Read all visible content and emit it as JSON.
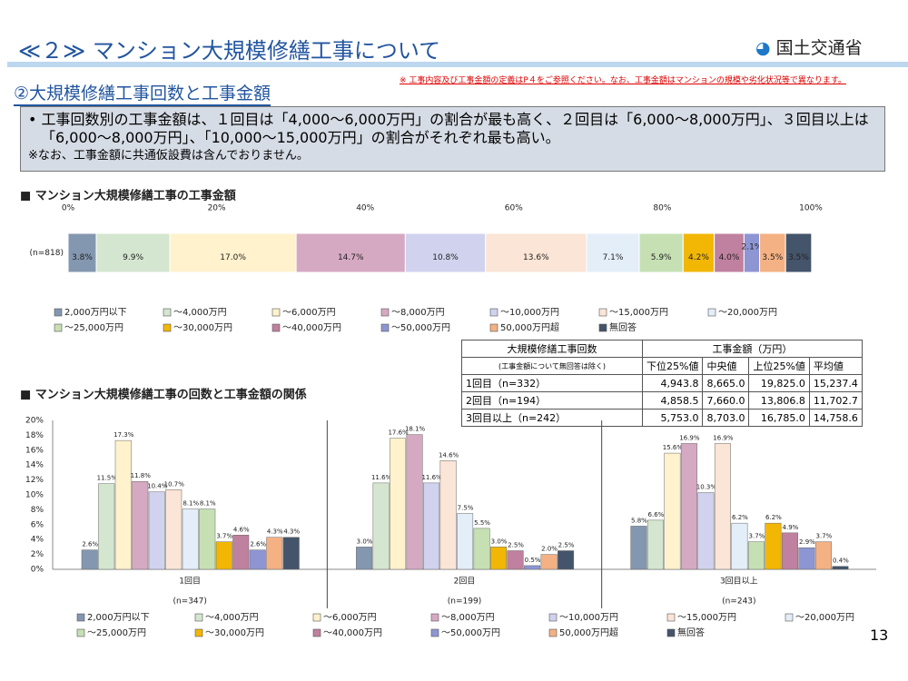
{
  "header": {
    "title": "≪２≫ マンション大規模修繕工事について",
    "logo": "国土交通省",
    "subtitle": "②大規模修繕工事回数と工事金額",
    "note": "※ 工事内容及び工事金額の定義はP４をご参照ください。なお、工事金額はマンションの規模や劣化状況等で異なります。"
  },
  "summary": {
    "bullet": "工事回数別の工事金額は、１回目は「4,000～6,000万円」の割合が最も高く、２回目は「6,000～8,000万円」、３回目以上は「6,000～8,000万円」、「10,000～15,000万円」の割合がそれぞれ最も高い。",
    "footnote": "※なお、工事金額に共通仮設費は含んでおりません。"
  },
  "chart_data": [
    {
      "type": "stacked_bar_h",
      "title": "■ マンション大規模修繕工事の工事金額",
      "categories": [
        "(n=818)"
      ],
      "xlim": [
        0,
        100
      ],
      "xticks": [
        {
          "value": 0,
          "label": "0%"
        },
        {
          "value": 20,
          "label": "20%"
        },
        {
          "value": 40,
          "label": "40%"
        },
        {
          "value": 60,
          "label": "60%"
        },
        {
          "value": 80,
          "label": "80%"
        },
        {
          "value": 100,
          "label": "100%"
        }
      ],
      "series": [
        {
          "name": "2,000万円以下",
          "color": "#8497b0",
          "values": [
            3.8
          ],
          "value_labels": [
            "3.8%"
          ]
        },
        {
          "name": "～4,000万円",
          "color": "#d4e6cf",
          "values": [
            9.9
          ],
          "value_labels": [
            "9.9%"
          ]
        },
        {
          "name": "～6,000万円",
          "color": "#fff2cc",
          "values": [
            17.0
          ],
          "value_labels": [
            "17.0%"
          ]
        },
        {
          "name": "～8,000万円",
          "color": "#d6a9c3",
          "values": [
            14.7
          ],
          "value_labels": [
            "14.7%"
          ]
        },
        {
          "name": "～10,000万円",
          "color": "#d0d2ee",
          "values": [
            10.8
          ],
          "value_labels": [
            "10.8%"
          ]
        },
        {
          "name": "～15,000万円",
          "color": "#fbe5d6",
          "values": [
            13.6
          ],
          "value_labels": [
            "13.6%"
          ]
        },
        {
          "name": "～20,000万円",
          "color": "#e3eef8",
          "values": [
            7.1
          ],
          "value_labels": [
            "7.1%"
          ]
        },
        {
          "name": "～25,000万円",
          "color": "#c6e0b4",
          "values": [
            5.9
          ],
          "value_labels": [
            "5.9%"
          ]
        },
        {
          "name": "～30,000万円",
          "color": "#f2b705",
          "values": [
            4.2
          ],
          "value_labels": [
            "4.2%"
          ]
        },
        {
          "name": "～40,000万円",
          "color": "#c0809f",
          "values": [
            4.0
          ],
          "value_labels": [
            "4.0%"
          ]
        },
        {
          "name": "～50,000万円",
          "color": "#8e95d3",
          "values": [
            2.1
          ],
          "value_labels": [
            "2.1%"
          ]
        },
        {
          "name": "50,000万円超",
          "color": "#f4b183",
          "values": [
            3.5
          ],
          "value_labels": [
            "3.5%"
          ]
        },
        {
          "name": "無回答",
          "color": "#44546a",
          "values": [
            3.5
          ],
          "value_labels": [
            "3.5%"
          ]
        }
      ]
    },
    {
      "type": "grouped_bar",
      "title": "■ マンション大規模修繕工事の回数と工事金額の関係",
      "categories": [
        "1回目",
        "2回目",
        "3回目以上"
      ],
      "category_notes": [
        "(n=347)",
        "(n=199)",
        "(n=243)"
      ],
      "ylim": [
        0,
        20
      ],
      "yticks": [
        {
          "value": 0,
          "label": "0%"
        },
        {
          "value": 2,
          "label": "2%"
        },
        {
          "value": 4,
          "label": "4%"
        },
        {
          "value": 6,
          "label": "6%"
        },
        {
          "value": 8,
          "label": "8%"
        },
        {
          "value": 10,
          "label": "10%"
        },
        {
          "value": 12,
          "label": "12%"
        },
        {
          "value": 14,
          "label": "14%"
        },
        {
          "value": 16,
          "label": "16%"
        },
        {
          "value": 18,
          "label": "18%"
        },
        {
          "value": 20,
          "label": "20%"
        }
      ],
      "series": [
        {
          "name": "2,000万円以下",
          "color": "#8497b0",
          "values": [
            2.6,
            3.0,
            5.8
          ],
          "value_labels": [
            "2.6%",
            "3.0%",
            "5.8%"
          ]
        },
        {
          "name": "～4,000万円",
          "color": "#d4e6cf",
          "values": [
            11.5,
            11.6,
            6.6
          ],
          "value_labels": [
            "11.5%",
            "11.6%",
            "6.6%"
          ]
        },
        {
          "name": "～6,000万円",
          "color": "#fff2cc",
          "values": [
            17.3,
            17.6,
            15.6
          ],
          "value_labels": [
            "17.3%",
            "17.6%",
            "15.6%"
          ]
        },
        {
          "name": "～8,000万円",
          "color": "#d6a9c3",
          "values": [
            11.8,
            18.1,
            16.9
          ],
          "value_labels": [
            "11.8%",
            "18.1%",
            "16.9%"
          ]
        },
        {
          "name": "～10,000万円",
          "color": "#d0d2ee",
          "values": [
            10.4,
            11.6,
            10.3
          ],
          "value_labels": [
            "10.4%",
            "11.6%",
            "10.3%"
          ]
        },
        {
          "name": "～15,000万円",
          "color": "#fbe5d6",
          "values": [
            10.7,
            14.6,
            16.9
          ],
          "value_labels": [
            "10.7%",
            "14.6%",
            "16.9%"
          ]
        },
        {
          "name": "～20,000万円",
          "color": "#e3eef8",
          "values": [
            8.1,
            7.5,
            6.2
          ],
          "value_labels": [
            "8.1%",
            "7.5%",
            "6.2%"
          ]
        },
        {
          "name": "～25,000万円",
          "color": "#c6e0b4",
          "values": [
            8.1,
            5.5,
            3.7
          ],
          "value_labels": [
            "8.1%",
            "5.5%",
            "3.7%"
          ]
        },
        {
          "name": "～30,000万円",
          "color": "#f2b705",
          "values": [
            3.7,
            3.0,
            6.2
          ],
          "value_labels": [
            "3.7%",
            "3.0%",
            "6.2%"
          ]
        },
        {
          "name": "～40,000万円",
          "color": "#c0809f",
          "values": [
            4.6,
            2.5,
            4.9
          ],
          "value_labels": [
            "4.6%",
            "2.5%",
            "4.9%"
          ]
        },
        {
          "name": "～50,000万円",
          "color": "#8e95d3",
          "values": [
            2.6,
            0.5,
            2.9
          ],
          "value_labels": [
            "2.6%",
            "0.5%",
            "2.9%"
          ]
        },
        {
          "name": "50,000万円超",
          "color": "#f4b183",
          "values": [
            4.3,
            2.0,
            3.7
          ],
          "value_labels": [
            "4.3%",
            "2.0%",
            "3.7%"
          ]
        },
        {
          "name": "無回答",
          "color": "#44546a",
          "values": [
            4.3,
            2.5,
            0.4
          ],
          "value_labels": [
            "4.3%",
            "2.5%",
            "0.4%"
          ]
        }
      ]
    }
  ],
  "table": {
    "header": [
      "大規模修繕工事回数",
      "(工事金額について無回答は除く)",
      "工事金額（万円）",
      "下位25%値",
      "中央値",
      "上位25%値",
      "平均値"
    ],
    "rows": [
      [
        "1回目（n=332）",
        "4,943.8",
        "8,665.0",
        "19,825.0",
        "15,237.4"
      ],
      [
        "2回目（n=194）",
        "4,858.5",
        "7,660.0",
        "13,806.8",
        "11,702.7"
      ],
      [
        "3回目以上（n=242）",
        "5,753.0",
        "8,703.0",
        "16,785.0",
        "14,758.6"
      ]
    ]
  },
  "page_number": "13"
}
